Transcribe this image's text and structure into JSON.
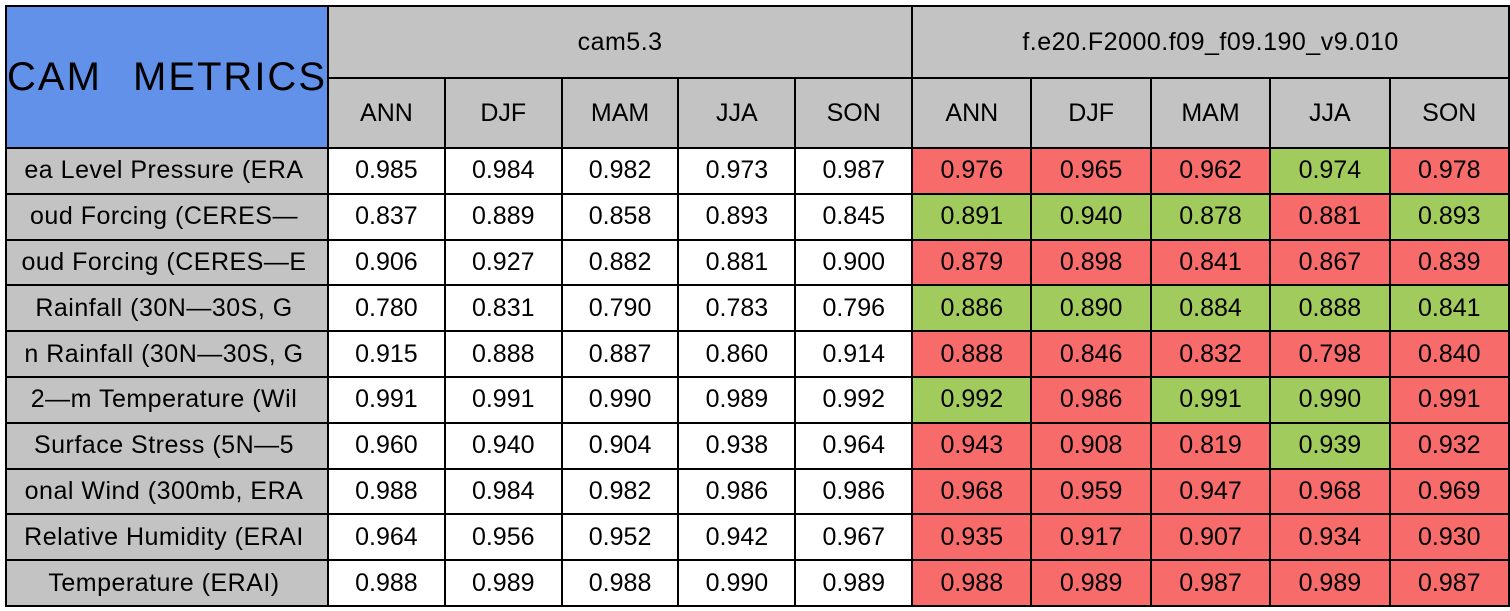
{
  "title": "CAM METRICS",
  "colors": {
    "title_bg": "#6191E9",
    "header_bg": "#C3C3C3",
    "value_bg": "#FFFFFF",
    "improved_bg": "#A2CB5D",
    "degraded_bg": "#F76B6B",
    "border": "#000000",
    "text": "#000000"
  },
  "chart_data": {
    "type": "table",
    "title": "CAM METRICS",
    "groups": [
      {
        "name": "cam5.3",
        "columns": [
          "ANN",
          "DJF",
          "MAM",
          "JJA",
          "SON"
        ]
      },
      {
        "name": "f.e20.F2000.f09_f09.190_v9.010",
        "columns": [
          "ANN",
          "DJF",
          "MAM",
          "JJA",
          "SON"
        ]
      }
    ],
    "highlight_colors": {
      "green": "#A2CB5D",
      "red": "#F76B6B"
    },
    "rows": [
      {
        "label": "ea Level Pressure (ERA",
        "cam5_3": [
          "0.985",
          "0.984",
          "0.982",
          "0.973",
          "0.987"
        ],
        "fe20": [
          "0.976",
          "0.965",
          "0.962",
          "0.974",
          "0.978"
        ],
        "fe20_highlight": [
          "red",
          "red",
          "red",
          "green",
          "red"
        ]
      },
      {
        "label": "oud Forcing (CERES—",
        "cam5_3": [
          "0.837",
          "0.889",
          "0.858",
          "0.893",
          "0.845"
        ],
        "fe20": [
          "0.891",
          "0.940",
          "0.878",
          "0.881",
          "0.893"
        ],
        "fe20_highlight": [
          "green",
          "green",
          "green",
          "red",
          "green"
        ]
      },
      {
        "label": "oud Forcing (CERES—E",
        "cam5_3": [
          "0.906",
          "0.927",
          "0.882",
          "0.881",
          "0.900"
        ],
        "fe20": [
          "0.879",
          "0.898",
          "0.841",
          "0.867",
          "0.839"
        ],
        "fe20_highlight": [
          "red",
          "red",
          "red",
          "red",
          "red"
        ]
      },
      {
        "label": "Rainfall (30N—30S, G",
        "cam5_3": [
          "0.780",
          "0.831",
          "0.790",
          "0.783",
          "0.796"
        ],
        "fe20": [
          "0.886",
          "0.890",
          "0.884",
          "0.888",
          "0.841"
        ],
        "fe20_highlight": [
          "green",
          "green",
          "green",
          "green",
          "green"
        ]
      },
      {
        "label": "n Rainfall (30N—30S, G",
        "cam5_3": [
          "0.915",
          "0.888",
          "0.887",
          "0.860",
          "0.914"
        ],
        "fe20": [
          "0.888",
          "0.846",
          "0.832",
          "0.798",
          "0.840"
        ],
        "fe20_highlight": [
          "red",
          "red",
          "red",
          "red",
          "red"
        ]
      },
      {
        "label": "2—m Temperature (Wil",
        "cam5_3": [
          "0.991",
          "0.991",
          "0.990",
          "0.989",
          "0.992"
        ],
        "fe20": [
          "0.992",
          "0.986",
          "0.991",
          "0.990",
          "0.991"
        ],
        "fe20_highlight": [
          "green",
          "red",
          "green",
          "green",
          "red"
        ]
      },
      {
        "label": "Surface Stress (5N—5",
        "cam5_3": [
          "0.960",
          "0.940",
          "0.904",
          "0.938",
          "0.964"
        ],
        "fe20": [
          "0.943",
          "0.908",
          "0.819",
          "0.939",
          "0.932"
        ],
        "fe20_highlight": [
          "red",
          "red",
          "red",
          "green",
          "red"
        ]
      },
      {
        "label": "onal Wind (300mb, ERA",
        "cam5_3": [
          "0.988",
          "0.984",
          "0.982",
          "0.986",
          "0.986"
        ],
        "fe20": [
          "0.968",
          "0.959",
          "0.947",
          "0.968",
          "0.969"
        ],
        "fe20_highlight": [
          "red",
          "red",
          "red",
          "red",
          "red"
        ]
      },
      {
        "label": "Relative Humidity (ERAI",
        "cam5_3": [
          "0.964",
          "0.956",
          "0.952",
          "0.942",
          "0.967"
        ],
        "fe20": [
          "0.935",
          "0.917",
          "0.907",
          "0.934",
          "0.930"
        ],
        "fe20_highlight": [
          "red",
          "red",
          "red",
          "red",
          "red"
        ]
      },
      {
        "label": "Temperature (ERAI)",
        "cam5_3": [
          "0.988",
          "0.989",
          "0.988",
          "0.990",
          "0.989"
        ],
        "fe20": [
          "0.988",
          "0.989",
          "0.987",
          "0.989",
          "0.987"
        ],
        "fe20_highlight": [
          "red",
          "red",
          "red",
          "red",
          "red"
        ]
      }
    ]
  }
}
